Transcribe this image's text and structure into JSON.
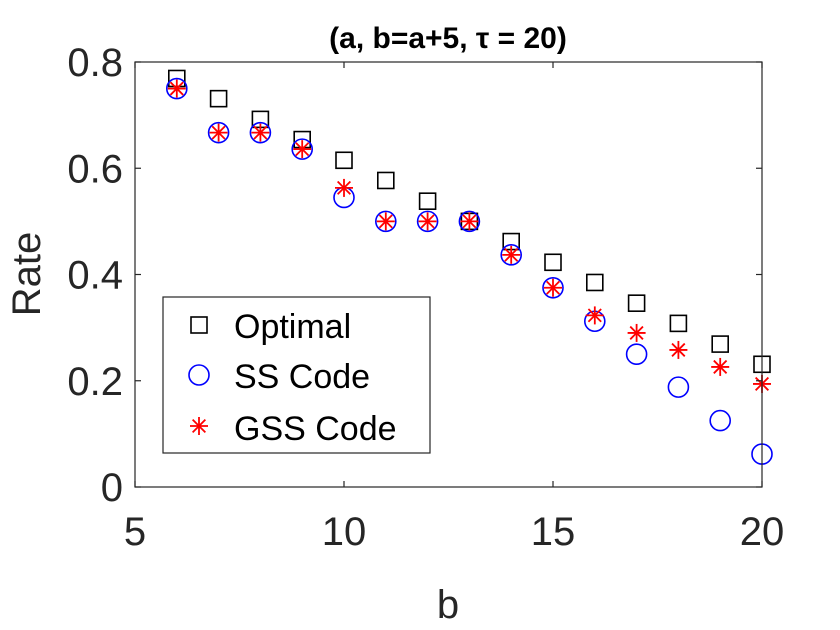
{
  "chart_data": {
    "type": "scatter",
    "title": "(a, b=a+5, τ = 20)",
    "xlabel": "b",
    "ylabel": "Rate",
    "xlim": [
      5,
      20
    ],
    "ylim": [
      0,
      0.8
    ],
    "xticks": [
      5,
      10,
      15,
      20
    ],
    "yticks": [
      0,
      0.2,
      0.4,
      0.6,
      0.8
    ],
    "xtick_labels": [
      "5",
      "10",
      "15",
      "20"
    ],
    "ytick_labels": [
      "0",
      "0.2",
      "0.4",
      "0.6",
      "0.8"
    ],
    "grid": false,
    "legend_position": "bottom-left",
    "x": [
      6,
      7,
      8,
      9,
      10,
      11,
      12,
      13,
      14,
      15,
      16,
      17,
      18,
      19,
      20
    ],
    "series": [
      {
        "name": "Optimal",
        "marker": "square",
        "color": "#000000",
        "values": [
          0.769,
          0.731,
          0.692,
          0.654,
          0.615,
          0.577,
          0.538,
          0.5,
          0.462,
          0.423,
          0.385,
          0.346,
          0.308,
          0.269,
          0.231
        ]
      },
      {
        "name": "SS Code",
        "marker": "circle",
        "color": "#0000ff",
        "values": [
          0.75,
          0.667,
          0.667,
          0.636,
          0.545,
          0.5,
          0.5,
          0.5,
          0.437,
          0.375,
          0.312,
          0.25,
          0.188,
          0.125,
          0.062
        ]
      },
      {
        "name": "GSS Code",
        "marker": "asterisk",
        "color": "#ff0000",
        "values": [
          0.75,
          0.667,
          0.667,
          0.636,
          0.563,
          0.5,
          0.5,
          0.5,
          0.437,
          0.375,
          0.323,
          0.29,
          0.258,
          0.226,
          0.194
        ]
      }
    ]
  }
}
